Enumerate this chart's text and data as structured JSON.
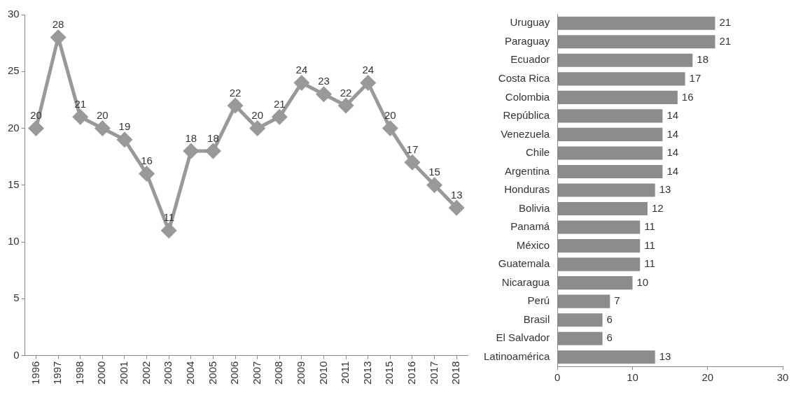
{
  "chart_data": [
    {
      "type": "line",
      "categories": [
        "1996",
        "1997",
        "1998",
        "2000",
        "2001",
        "2002",
        "2003",
        "2004",
        "2005",
        "2006",
        "2007",
        "2008",
        "2009",
        "2010",
        "2011",
        "2013",
        "2015",
        "2016",
        "2017",
        "2018"
      ],
      "values": [
        20,
        28,
        21,
        20,
        19,
        16,
        11,
        18,
        18,
        22,
        20,
        21,
        24,
        23,
        22,
        24,
        20,
        17,
        15,
        13
      ],
      "color": "#999999",
      "ylim": [
        0,
        30
      ],
      "yticks": [
        0,
        5,
        10,
        15,
        20,
        25,
        30
      ],
      "grid": false,
      "legend": false,
      "marker": "diamond",
      "line_style": "solid",
      "data_labels": true
    },
    {
      "type": "bar",
      "orientation": "horizontal",
      "categories": [
        "Uruguay",
        "Paraguay",
        "Ecuador",
        "Costa Rica",
        "Colombia",
        "República",
        "Venezuela",
        "Chile",
        "Argentina",
        "Honduras",
        "Bolivia",
        "Panamá",
        "México",
        "Guatemala",
        "Nicaragua",
        "Perú",
        "Brasil",
        "El Salvador",
        "Latinoamérica"
      ],
      "values": [
        21,
        21,
        18,
        17,
        16,
        14,
        14,
        14,
        14,
        13,
        12,
        11,
        11,
        11,
        10,
        7,
        6,
        6,
        13
      ],
      "color": "#8c8c8c",
      "xlim": [
        0,
        30
      ],
      "xticks": [
        0,
        10,
        20,
        30
      ],
      "grid": false,
      "legend": false,
      "data_labels": true
    }
  ]
}
